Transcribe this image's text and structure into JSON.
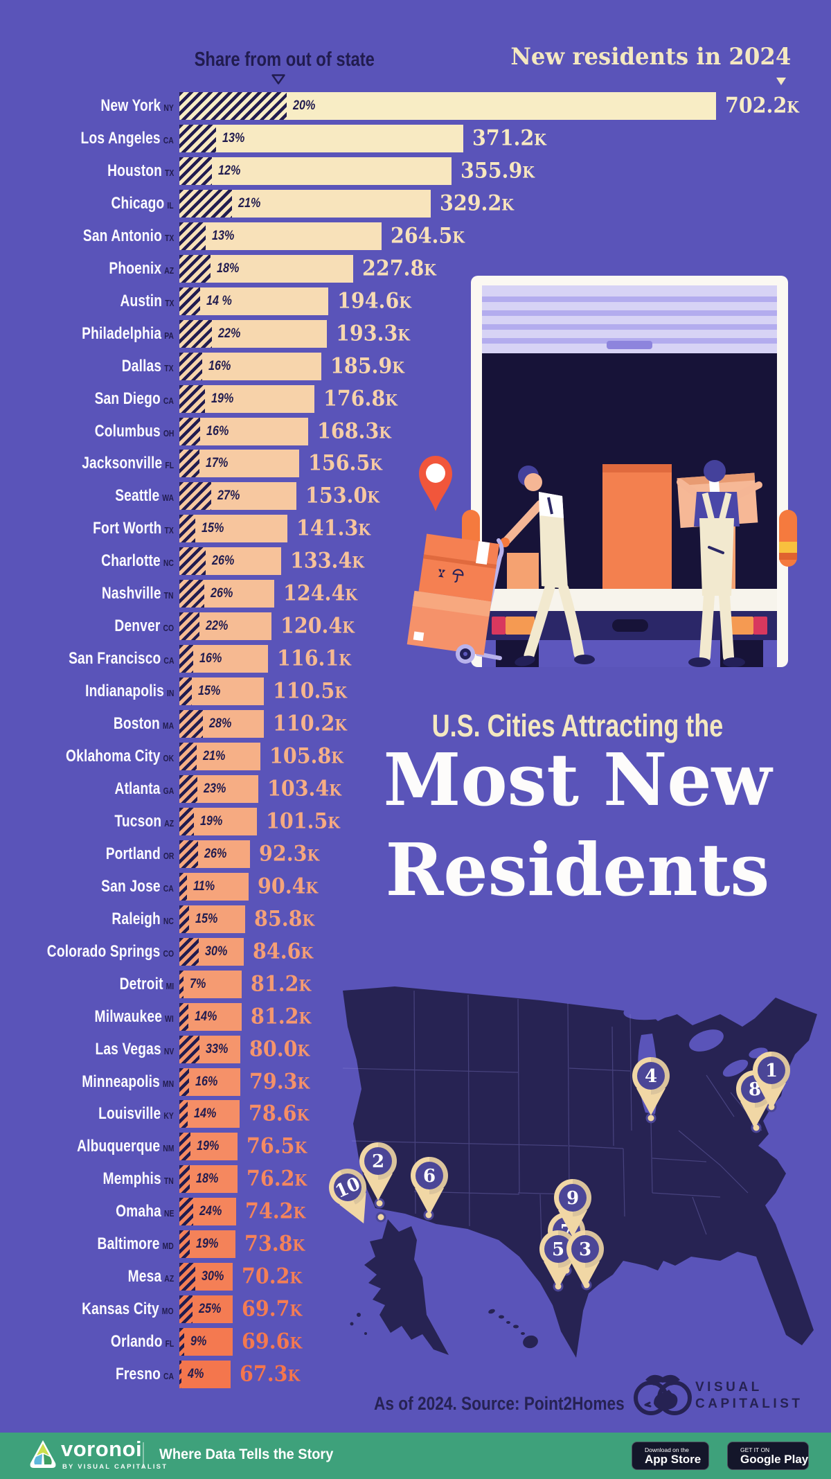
{
  "colors": {
    "background": "#5a54b9",
    "bar_start": "#f8edc5",
    "bar_end": "#f4764d",
    "hatch": "#211c4f",
    "navy": "#211c4f",
    "cream": "#f4e8c0",
    "white": "#fdfcff",
    "map_fill": "#272353",
    "map_line": "#8f88dd",
    "pin_fill": "#f1d7a5",
    "pin_circle": "#4b4697",
    "footer_green": "#3ea17b",
    "badge_bg": "#14162a",
    "accent_orange": "#f1563b"
  },
  "header": {
    "share_label": "Share from out of state",
    "residents_label": "New residents in 2024"
  },
  "chart_data": {
    "type": "bar",
    "orientation": "horizontal",
    "unit": "K",
    "value_axis_label": "New residents in 2024",
    "secondary_metric_label": "Share from out of state",
    "max_value": 702.2,
    "cities": [
      {
        "rank": 1,
        "city": "New York",
        "state": "NY",
        "share_pct": 20,
        "share_label": "20%",
        "residents_k": 702.2,
        "residents_label": "702.2"
      },
      {
        "rank": 2,
        "city": "Los Angeles",
        "state": "CA",
        "share_pct": 13,
        "share_label": "13%",
        "residents_k": 371.2,
        "residents_label": "371.2"
      },
      {
        "rank": 3,
        "city": "Houston",
        "state": "TX",
        "share_pct": 12,
        "share_label": "12%",
        "residents_k": 355.9,
        "residents_label": "355.9"
      },
      {
        "rank": 4,
        "city": "Chicago",
        "state": "IL",
        "share_pct": 21,
        "share_label": "21%",
        "residents_k": 329.2,
        "residents_label": "329.2"
      },
      {
        "rank": 5,
        "city": "San Antonio",
        "state": "TX",
        "share_pct": 13,
        "share_label": "13%",
        "residents_k": 264.5,
        "residents_label": "264.5"
      },
      {
        "rank": 6,
        "city": "Phoenix",
        "state": "AZ",
        "share_pct": 18,
        "share_label": "18%",
        "residents_k": 227.8,
        "residents_label": "227.8"
      },
      {
        "rank": 7,
        "city": "Austin",
        "state": "TX",
        "share_pct": 14,
        "share_label": "14 %",
        "residents_k": 194.6,
        "residents_label": "194.6"
      },
      {
        "rank": 8,
        "city": "Philadelphia",
        "state": "PA",
        "share_pct": 22,
        "share_label": "22%",
        "residents_k": 193.3,
        "residents_label": "193.3"
      },
      {
        "rank": 9,
        "city": "Dallas",
        "state": "TX",
        "share_pct": 16,
        "share_label": "16%",
        "residents_k": 185.9,
        "residents_label": "185.9"
      },
      {
        "rank": 10,
        "city": "San Diego",
        "state": "CA",
        "share_pct": 19,
        "share_label": "19%",
        "residents_k": 176.8,
        "residents_label": "176.8"
      },
      {
        "rank": 11,
        "city": "Columbus",
        "state": "OH",
        "share_pct": 16,
        "share_label": "16%",
        "residents_k": 168.3,
        "residents_label": "168.3"
      },
      {
        "rank": 12,
        "city": "Jacksonville",
        "state": "FL",
        "share_pct": 17,
        "share_label": "17%",
        "residents_k": 156.5,
        "residents_label": "156.5"
      },
      {
        "rank": 13,
        "city": "Seattle",
        "state": "WA",
        "share_pct": 27,
        "share_label": "27%",
        "residents_k": 153.0,
        "residents_label": "153.0"
      },
      {
        "rank": 14,
        "city": "Fort Worth",
        "state": "TX",
        "share_pct": 15,
        "share_label": "15%",
        "residents_k": 141.3,
        "residents_label": "141.3"
      },
      {
        "rank": 15,
        "city": "Charlotte",
        "state": "NC",
        "share_pct": 26,
        "share_label": "26%",
        "residents_k": 133.4,
        "residents_label": "133.4"
      },
      {
        "rank": 16,
        "city": "Nashville",
        "state": "TN",
        "share_pct": 26,
        "share_label": "26%",
        "residents_k": 124.4,
        "residents_label": "124.4"
      },
      {
        "rank": 17,
        "city": "Denver",
        "state": "CO",
        "share_pct": 22,
        "share_label": "22%",
        "residents_k": 120.4,
        "residents_label": "120.4"
      },
      {
        "rank": 18,
        "city": "San Francisco",
        "state": "CA",
        "share_pct": 16,
        "share_label": "16%",
        "residents_k": 116.1,
        "residents_label": "116.1"
      },
      {
        "rank": 19,
        "city": "Indianapolis",
        "state": "IN",
        "share_pct": 15,
        "share_label": "15%",
        "residents_k": 110.5,
        "residents_label": "110.5"
      },
      {
        "rank": 20,
        "city": "Boston",
        "state": "MA",
        "share_pct": 28,
        "share_label": "28%",
        "residents_k": 110.2,
        "residents_label": "110.2"
      },
      {
        "rank": 21,
        "city": "Oklahoma City",
        "state": "OK",
        "share_pct": 21,
        "share_label": "21%",
        "residents_k": 105.8,
        "residents_label": "105.8"
      },
      {
        "rank": 22,
        "city": "Atlanta",
        "state": "GA",
        "share_pct": 23,
        "share_label": "23%",
        "residents_k": 103.4,
        "residents_label": "103.4"
      },
      {
        "rank": 23,
        "city": "Tucson",
        "state": "AZ",
        "share_pct": 19,
        "share_label": "19%",
        "residents_k": 101.5,
        "residents_label": "101.5"
      },
      {
        "rank": 24,
        "city": "Portland",
        "state": "OR",
        "share_pct": 26,
        "share_label": "26%",
        "residents_k": 92.3,
        "residents_label": "92.3"
      },
      {
        "rank": 25,
        "city": "San Jose",
        "state": "CA",
        "share_pct": 11,
        "share_label": "11%",
        "residents_k": 90.4,
        "residents_label": "90.4"
      },
      {
        "rank": 26,
        "city": "Raleigh",
        "state": "NC",
        "share_pct": 15,
        "share_label": "15%",
        "residents_k": 85.8,
        "residents_label": "85.8"
      },
      {
        "rank": 27,
        "city": "Colorado Springs",
        "state": "CO",
        "share_pct": 30,
        "share_label": "30%",
        "residents_k": 84.6,
        "residents_label": "84.6"
      },
      {
        "rank": 28,
        "city": "Detroit",
        "state": "MI",
        "share_pct": 7,
        "share_label": "7%",
        "residents_k": 81.2,
        "residents_label": "81.2"
      },
      {
        "rank": 29,
        "city": "Milwaukee",
        "state": "WI",
        "share_pct": 14,
        "share_label": "14%",
        "residents_k": 81.2,
        "residents_label": "81.2"
      },
      {
        "rank": 30,
        "city": "Las Vegas",
        "state": "NV",
        "share_pct": 33,
        "share_label": "33%",
        "residents_k": 80.0,
        "residents_label": "80.0"
      },
      {
        "rank": 31,
        "city": "Minneapolis",
        "state": "MN",
        "share_pct": 16,
        "share_label": "16%",
        "residents_k": 79.3,
        "residents_label": "79.3"
      },
      {
        "rank": 32,
        "city": "Louisville",
        "state": "KY",
        "share_pct": 14,
        "share_label": "14%",
        "residents_k": 78.6,
        "residents_label": "78.6"
      },
      {
        "rank": 33,
        "city": "Albuquerque",
        "state": "NM",
        "share_pct": 19,
        "share_label": "19%",
        "residents_k": 76.5,
        "residents_label": "76.5"
      },
      {
        "rank": 34,
        "city": "Memphis",
        "state": "TN",
        "share_pct": 18,
        "share_label": "18%",
        "residents_k": 76.2,
        "residents_label": "76.2"
      },
      {
        "rank": 35,
        "city": "Omaha",
        "state": "NE",
        "share_pct": 24,
        "share_label": "24%",
        "residents_k": 74.2,
        "residents_label": "74.2"
      },
      {
        "rank": 36,
        "city": "Baltimore",
        "state": "MD",
        "share_pct": 19,
        "share_label": "19%",
        "residents_k": 73.8,
        "residents_label": "73.8"
      },
      {
        "rank": 37,
        "city": "Mesa",
        "state": "AZ",
        "share_pct": 30,
        "share_label": "30%",
        "residents_k": 70.2,
        "residents_label": "70.2"
      },
      {
        "rank": 38,
        "city": "Kansas City",
        "state": "MO",
        "share_pct": 25,
        "share_label": "25%",
        "residents_k": 69.7,
        "residents_label": "69.7"
      },
      {
        "rank": 39,
        "city": "Orlando",
        "state": "FL",
        "share_pct": 9,
        "share_label": "9%",
        "residents_k": 69.6,
        "residents_label": "69.6"
      },
      {
        "rank": 40,
        "city": "Fresno",
        "state": "CA",
        "share_pct": 4,
        "share_label": "4%",
        "residents_k": 67.3,
        "residents_label": "67.3"
      }
    ]
  },
  "title": {
    "kicker": "U.S. Cities Attracting the",
    "line1": "Most New",
    "line2": "Residents"
  },
  "map": {
    "pins": [
      {
        "number": "1"
      },
      {
        "number": "2"
      },
      {
        "number": "3"
      },
      {
        "number": "4"
      },
      {
        "number": "5"
      },
      {
        "number": "6"
      },
      {
        "number": "7"
      },
      {
        "number": "8"
      },
      {
        "number": "9"
      },
      {
        "number": "10"
      }
    ]
  },
  "source_note": "As of 2024. Source: Point2Homes",
  "vc_logo": {
    "line1": "VISUAL",
    "line2": "CAPITALIST"
  },
  "footer": {
    "brand": "voronoi",
    "byline": "BY VISUAL CAPITALIST",
    "tagline": "Where Data Tells the Story",
    "appstore_line1": "Download on the",
    "appstore_line2": "App Store",
    "googleplay_line1": "GET IT ON",
    "googleplay_line2": "Google Play"
  }
}
